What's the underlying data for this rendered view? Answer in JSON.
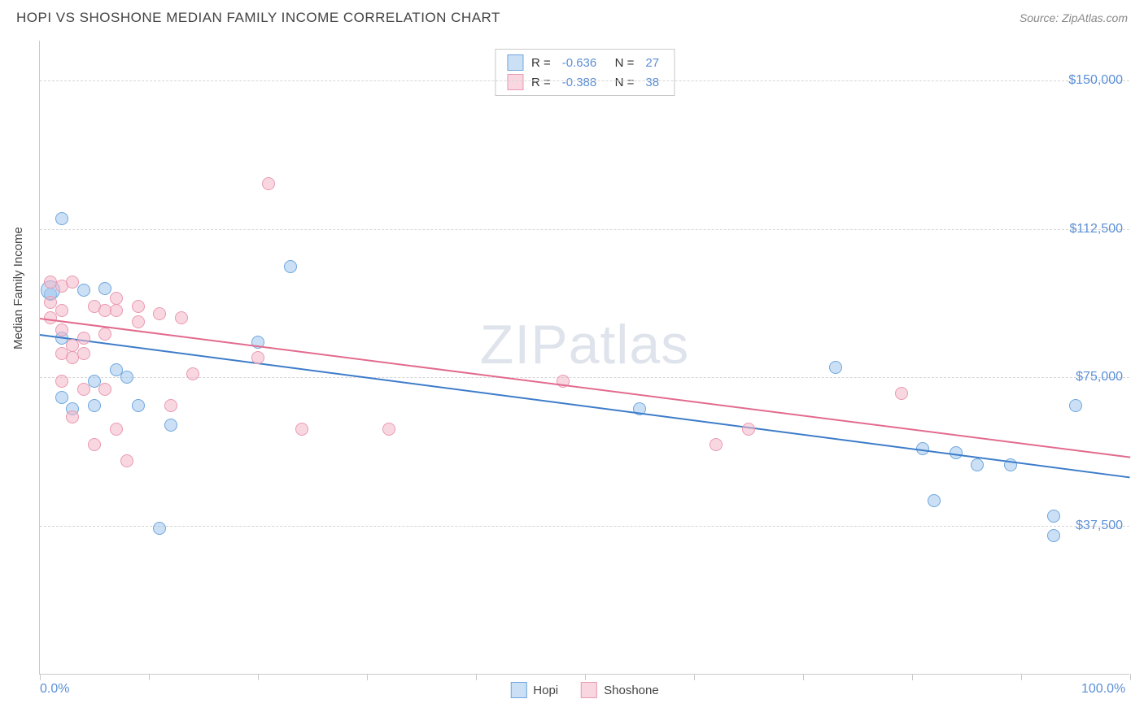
{
  "title": "HOPI VS SHOSHONE MEDIAN FAMILY INCOME CORRELATION CHART",
  "source_label": "Source: ZipAtlas.com",
  "y_axis_label": "Median Family Income",
  "watermark": {
    "bold": "ZIP",
    "light": "atlas"
  },
  "chart": {
    "type": "scatter",
    "xlim": [
      0,
      100
    ],
    "ylim": [
      0,
      160000
    ],
    "x_ticks": [
      0,
      10,
      20,
      30,
      40,
      50,
      60,
      70,
      80,
      90,
      100
    ],
    "x_tick_labels_shown": {
      "0": "0.0%",
      "100": "100.0%"
    },
    "y_gridlines": [
      37500,
      75000,
      112500,
      150000
    ],
    "y_tick_labels": [
      "$37,500",
      "$75,000",
      "$112,500",
      "$150,000"
    ],
    "background_color": "#ffffff",
    "grid_color": "#d6d6d6",
    "axis_color": "#c9c9c9",
    "label_color": "#5b8fd6",
    "title_color": "#444444",
    "marker_radius": 8,
    "large_marker_radius": 12,
    "series": [
      {
        "name": "Hopi",
        "fill": "rgba(160,198,237,0.55)",
        "stroke": "#6fa6de",
        "trend_color": "#3d7cc9",
        "R": "-0.636",
        "N": "27",
        "trend": {
          "x1": 0,
          "y1": 86000,
          "x2": 100,
          "y2": 50000
        },
        "points": [
          {
            "x": 1,
            "y": 96000
          },
          {
            "x": 2,
            "y": 115000
          },
          {
            "x": 1,
            "y": 97000,
            "r": 12
          },
          {
            "x": 4,
            "y": 97000
          },
          {
            "x": 6,
            "y": 97500
          },
          {
            "x": 2,
            "y": 85000
          },
          {
            "x": 2,
            "y": 70000
          },
          {
            "x": 3,
            "y": 67000
          },
          {
            "x": 5,
            "y": 74000
          },
          {
            "x": 5,
            "y": 68000
          },
          {
            "x": 7,
            "y": 77000
          },
          {
            "x": 8,
            "y": 75000
          },
          {
            "x": 9,
            "y": 68000
          },
          {
            "x": 12,
            "y": 63000
          },
          {
            "x": 11,
            "y": 37000
          },
          {
            "x": 20,
            "y": 84000
          },
          {
            "x": 23,
            "y": 103000
          },
          {
            "x": 55,
            "y": 67000
          },
          {
            "x": 73,
            "y": 77500
          },
          {
            "x": 81,
            "y": 57000
          },
          {
            "x": 82,
            "y": 44000
          },
          {
            "x": 84,
            "y": 56000
          },
          {
            "x": 86,
            "y": 53000
          },
          {
            "x": 89,
            "y": 53000
          },
          {
            "x": 93,
            "y": 40000
          },
          {
            "x": 93,
            "y": 35000
          },
          {
            "x": 95,
            "y": 68000
          }
        ]
      },
      {
        "name": "Shoshone",
        "fill": "rgba(244,182,200,0.55)",
        "stroke": "#e89ab0",
        "trend_color": "#e26b8d",
        "R": "-0.388",
        "N": "38",
        "trend": {
          "x1": 0,
          "y1": 90000,
          "x2": 100,
          "y2": 55000
        },
        "points": [
          {
            "x": 1,
            "y": 99000
          },
          {
            "x": 1,
            "y": 94000
          },
          {
            "x": 1,
            "y": 90000
          },
          {
            "x": 2,
            "y": 98000
          },
          {
            "x": 2,
            "y": 92000
          },
          {
            "x": 2,
            "y": 87000
          },
          {
            "x": 2,
            "y": 81000
          },
          {
            "x": 2,
            "y": 74000
          },
          {
            "x": 3,
            "y": 99000
          },
          {
            "x": 3,
            "y": 83000
          },
          {
            "x": 3,
            "y": 80000
          },
          {
            "x": 3,
            "y": 65000
          },
          {
            "x": 4,
            "y": 85000
          },
          {
            "x": 4,
            "y": 81000
          },
          {
            "x": 4,
            "y": 72000
          },
          {
            "x": 5,
            "y": 93000
          },
          {
            "x": 5,
            "y": 58000
          },
          {
            "x": 6,
            "y": 92000
          },
          {
            "x": 6,
            "y": 86000
          },
          {
            "x": 6,
            "y": 72000
          },
          {
            "x": 7,
            "y": 95000
          },
          {
            "x": 7,
            "y": 92000
          },
          {
            "x": 7,
            "y": 62000
          },
          {
            "x": 8,
            "y": 54000
          },
          {
            "x": 9,
            "y": 93000
          },
          {
            "x": 9,
            "y": 89000
          },
          {
            "x": 11,
            "y": 91000
          },
          {
            "x": 12,
            "y": 68000
          },
          {
            "x": 13,
            "y": 90000
          },
          {
            "x": 14,
            "y": 76000
          },
          {
            "x": 20,
            "y": 80000
          },
          {
            "x": 21,
            "y": 124000
          },
          {
            "x": 24,
            "y": 62000
          },
          {
            "x": 32,
            "y": 62000
          },
          {
            "x": 48,
            "y": 74000
          },
          {
            "x": 62,
            "y": 58000
          },
          {
            "x": 65,
            "y": 62000
          },
          {
            "x": 79,
            "y": 71000
          }
        ]
      }
    ]
  },
  "legend": {
    "stats_rows": [
      {
        "series": 0
      },
      {
        "series": 1
      }
    ],
    "bottom": [
      {
        "series": 0
      },
      {
        "series": 1
      }
    ]
  }
}
